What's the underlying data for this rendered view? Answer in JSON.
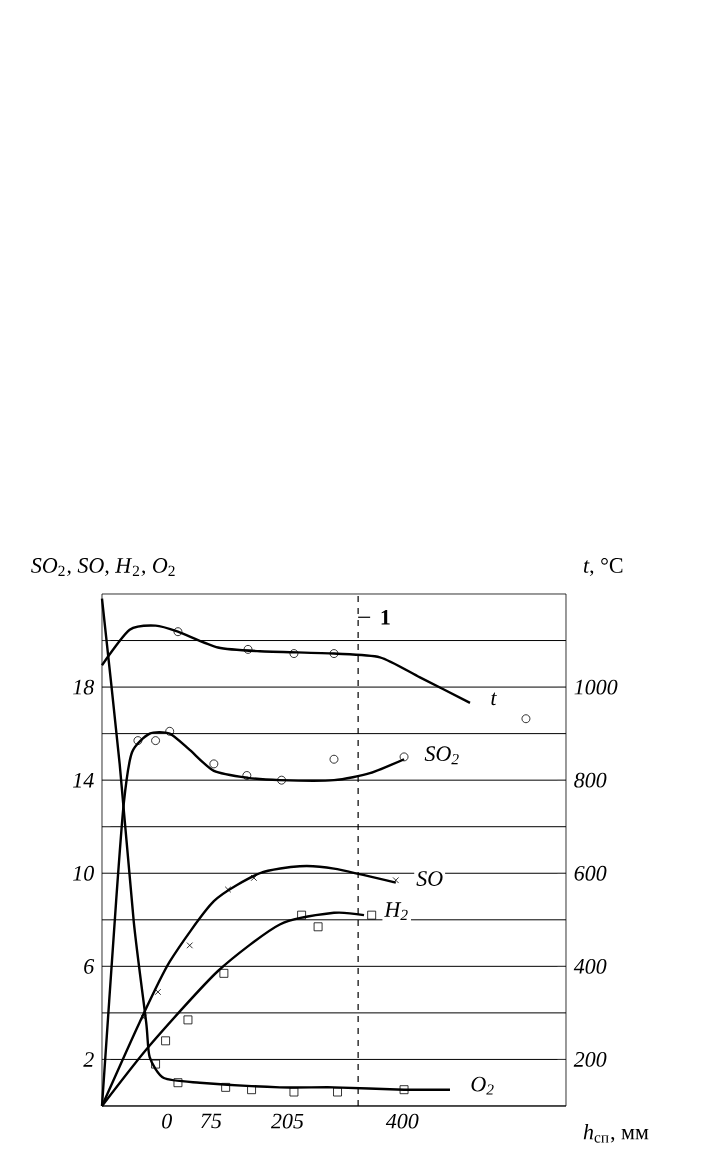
{
  "chart_data": {
    "type": "line",
    "ylabel": "*SO*$_{2}$*, SO, H*$_{2}$*, O*$_{2}$",
    "y2label": "*t*, °C",
    "xlabel": "*h*$_{сп}$, мм",
    "xlim": [
      -110,
      678
    ],
    "xticks": [
      0,
      75,
      205,
      400
    ],
    "ylim": [
      0,
      22
    ],
    "yticks": [
      {
        "value": 0,
        "label": null
      },
      2,
      {
        "value": 4,
        "label": null
      },
      6,
      {
        "value": 8,
        "label": null
      },
      10,
      {
        "value": 12,
        "label": null
      },
      14,
      {
        "value": 16,
        "label": null
      },
      18,
      {
        "value": 20,
        "label": null
      }
    ],
    "y2lim": [
      100,
      1200
    ],
    "y2ticks": [
      200,
      400,
      600,
      800,
      1000
    ],
    "grid": "y",
    "ref_lines": [
      {
        "axis": "x",
        "value": 325,
        "line_style": "dashed"
      }
    ],
    "annotations": [
      {
        "text": "1",
        "x": 325,
        "y": 21
      }
    ],
    "series": [
      {
        "name": "t",
        "axis": "y2",
        "color": "#000000",
        "x": [
          -110,
          -63,
          -19,
          19,
          87,
          158,
          284,
          362,
          430,
          515
        ],
        "values": [
          1047,
          1123,
          1132,
          1119,
          1085,
          1077,
          1072,
          1064,
          1021,
          966
        ]
      },
      {
        "type": "scatter",
        "axis": "y2",
        "marker": "circle",
        "color": "#000000",
        "x": [
          19,
          138,
          216,
          284,
          610
        ],
        "values": [
          1119,
          1081,
          1072,
          1072,
          932
        ]
      },
      {
        "name": "SO$_{2}$",
        "color": "#000000",
        "x": [
          -110,
          -86,
          -73,
          -59,
          -29,
          5,
          39,
          80,
          138,
          192,
          284,
          345,
          403
        ],
        "values": [
          0,
          8.8,
          13.0,
          15.2,
          16.0,
          16.0,
          15.3,
          14.4,
          14.1,
          14.0,
          14.0,
          14.3,
          14.9
        ]
      },
      {
        "type": "scatter",
        "marker": "circle",
        "color": "#000000",
        "x": [
          -49,
          -19,
          5,
          80,
          136,
          195,
          284,
          403
        ],
        "values": [
          15.7,
          15.7,
          16.1,
          14.7,
          14.2,
          14.0,
          14.9,
          15.0
        ]
      },
      {
        "name": "SO",
        "color": "#000000",
        "x": [
          -110,
          -46,
          5,
          80,
          158,
          226,
          284,
          389
        ],
        "values": [
          0,
          3.6,
          6.2,
          8.8,
          10.0,
          10.3,
          10.2,
          9.6
        ]
      },
      {
        "type": "scatter",
        "marker": "cross",
        "color": "#000000",
        "x": [
          -39,
          -15,
          39,
          104,
          148,
          389
        ],
        "values": [
          3.8,
          4.9,
          6.9,
          9.3,
          9.8,
          9.7
        ]
      },
      {
        "name": "H$_{2}$",
        "color": "#000000",
        "x": [
          -110,
          -29,
          87,
          192,
          284,
          335
        ],
        "values": [
          0,
          2.6,
          5.8,
          7.8,
          8.3,
          8.2
        ]
      },
      {
        "type": "scatter",
        "marker": "square",
        "color": "#000000",
        "x": [
          -2,
          36,
          97,
          229,
          257,
          348
        ],
        "values": [
          2.8,
          3.7,
          5.7,
          8.2,
          7.7,
          8.2
        ]
      },
      {
        "name": "O$_{2}$",
        "color": "#000000",
        "x": [
          -110,
          -80,
          -56,
          -35,
          -29,
          -5,
          56,
          192,
          284,
          403,
          481
        ],
        "values": [
          21.8,
          14.7,
          7.9,
          3.6,
          2.1,
          1.2,
          1.0,
          0.8,
          0.8,
          0.7,
          0.7
        ]
      },
      {
        "type": "scatter",
        "marker": "square",
        "color": "#000000",
        "x": [
          -19,
          19,
          100,
          144,
          216,
          290,
          403
        ],
        "values": [
          1.8,
          1.0,
          0.8,
          0.7,
          0.6,
          0.6,
          0.7
        ]
      }
    ]
  }
}
